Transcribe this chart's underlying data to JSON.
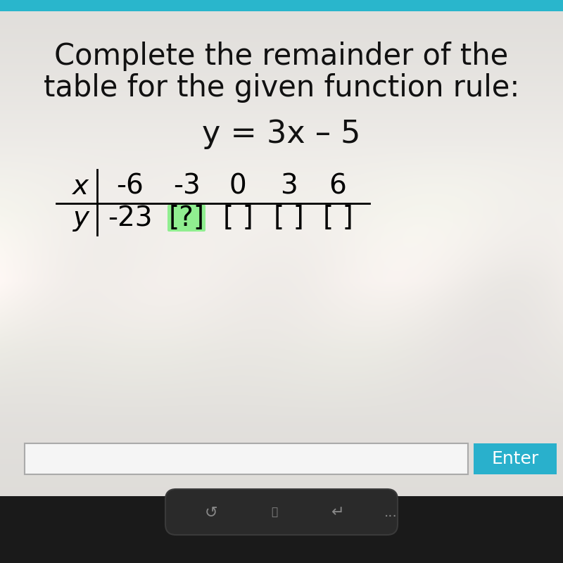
{
  "title_line1": "Complete the remainder of the",
  "title_line2": "table for the given function rule:",
  "equation": "y = 3x – 5",
  "x_label": "x",
  "y_label": "y",
  "x_values": [
    "-6",
    "-3",
    "0",
    "3",
    "6"
  ],
  "y_values": [
    "-23",
    "[?]",
    "[ ]",
    "[ ]",
    "[ ]"
  ],
  "bg_color_top": "#c8c8c8",
  "bg_color_mid": "#e8e6e0",
  "top_bar_color": "#29b6cc",
  "enter_btn_color": "#29b0cc",
  "enter_btn_text": "Enter",
  "input_box_bg": "#f8f8f8",
  "question_mark_bg": "#90ee90",
  "title_fontsize": 30,
  "equation_fontsize": 32,
  "table_fontsize": 28,
  "enter_fontsize": 18
}
